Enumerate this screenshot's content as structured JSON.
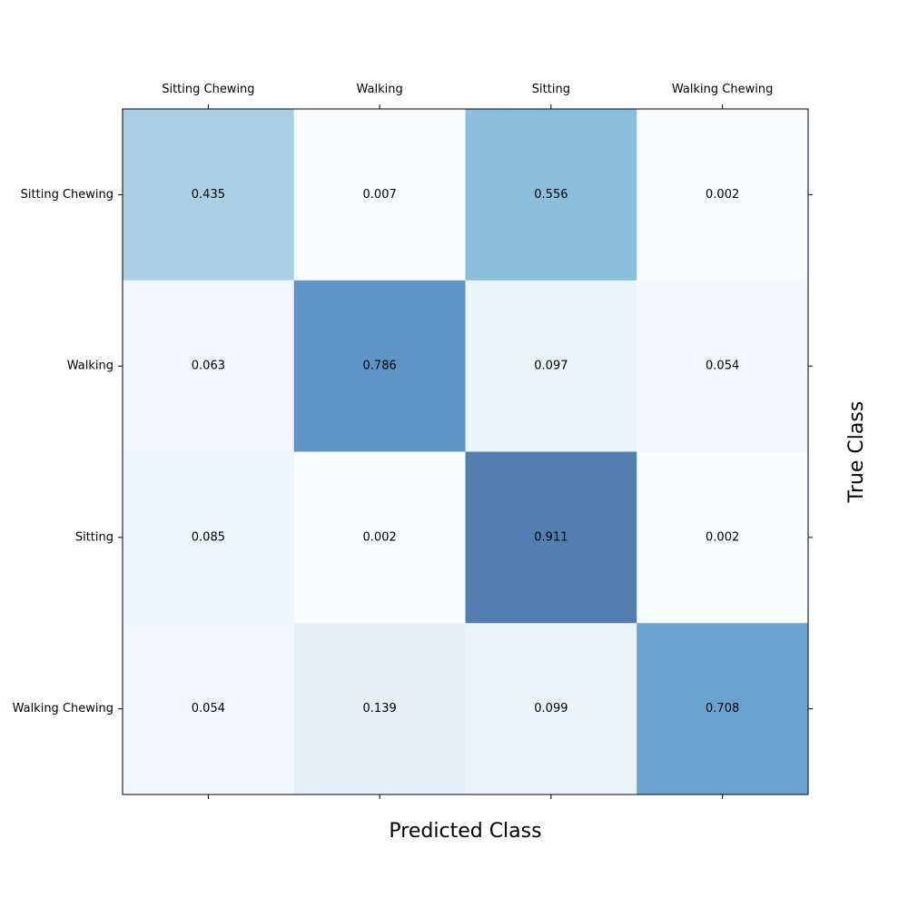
{
  "chart_data": {
    "type": "heatmap",
    "xlabel": "Predicted Class",
    "ylabel": "True Class",
    "x_categories": [
      "Sitting Chewing",
      "Walking",
      "Sitting",
      "Walking Chewing"
    ],
    "y_categories": [
      "Sitting Chewing",
      "Walking",
      "Sitting",
      "Walking Chewing"
    ],
    "values": [
      [
        0.435,
        0.007,
        0.556,
        0.002
      ],
      [
        0.063,
        0.786,
        0.097,
        0.054
      ],
      [
        0.085,
        0.002,
        0.911,
        0.002
      ],
      [
        0.054,
        0.139,
        0.099,
        0.708
      ]
    ],
    "value_labels": [
      [
        "0.435",
        "0.007",
        "0.556",
        "0.002"
      ],
      [
        "0.063",
        "0.786",
        "0.097",
        "0.054"
      ],
      [
        "0.085",
        "0.002",
        "0.911",
        "0.002"
      ],
      [
        "0.054",
        "0.139",
        "0.099",
        "0.708"
      ]
    ],
    "value_range": [
      0,
      1
    ],
    "colormap": "Blues",
    "grid": false,
    "x_tick_position": "top"
  }
}
